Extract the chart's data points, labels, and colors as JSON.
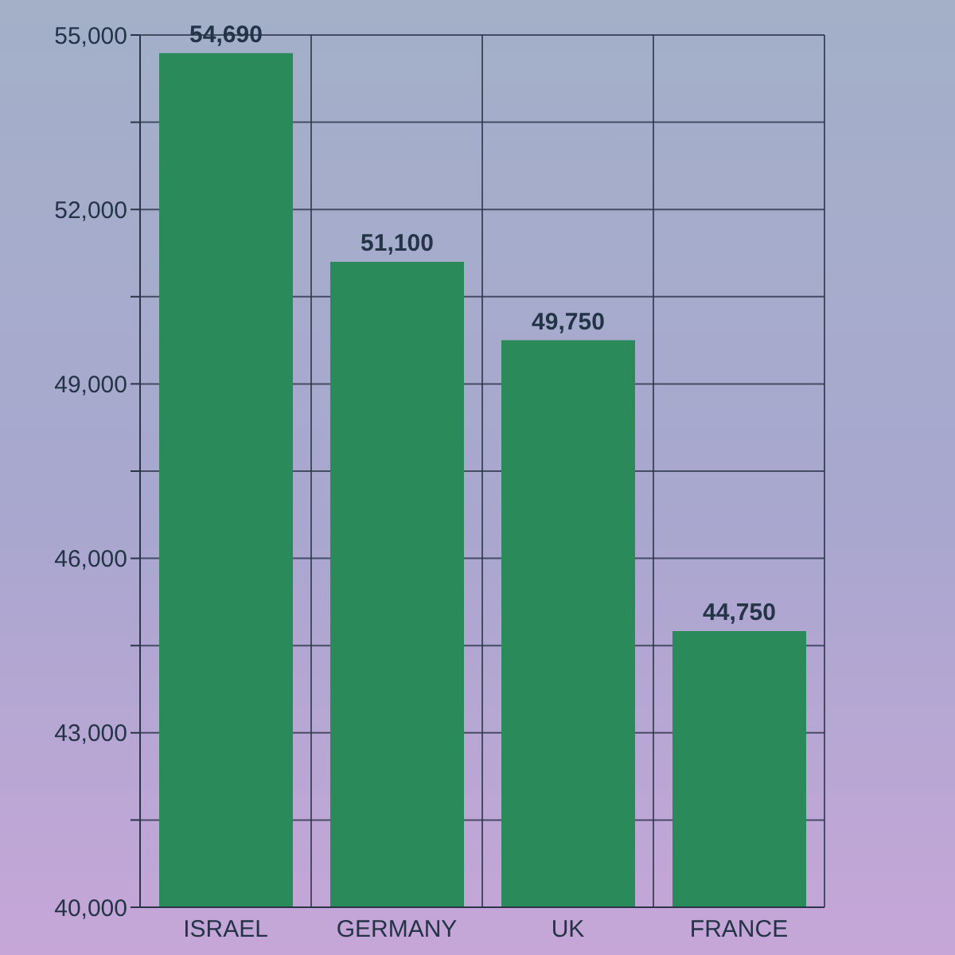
{
  "chart_data": {
    "type": "bar",
    "categories": [
      "ISRAEL",
      "GERMANY",
      "UK",
      "FRANCE"
    ],
    "values": [
      54690,
      51100,
      49750,
      44750
    ],
    "value_labels": [
      "54,690",
      "51,100",
      "49,750",
      "44,750"
    ],
    "color": "#2a8a5a",
    "ylim": [
      40000,
      55000
    ],
    "yticks": [
      {
        "value": 40000,
        "label": "40,000"
      },
      {
        "value": 41500,
        "label": null
      },
      {
        "value": 43000,
        "label": "43,000"
      },
      {
        "value": 44500,
        "label": null
      },
      {
        "value": 46000,
        "label": "46,000"
      },
      {
        "value": 47500,
        "label": null
      },
      {
        "value": 49000,
        "label": "49,000"
      },
      {
        "value": 50500,
        "label": null
      },
      {
        "value": 52000,
        "label": "52,000"
      },
      {
        "value": 53500,
        "label": null
      },
      {
        "value": 55000,
        "label": "55,000"
      }
    ],
    "grid": true
  }
}
